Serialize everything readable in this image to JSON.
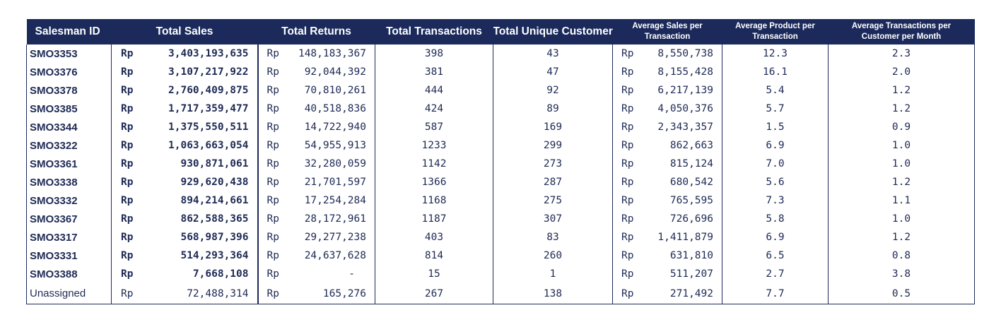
{
  "headers": {
    "salesman_id": "Salesman ID",
    "total_sales": "Total Sales",
    "total_returns": "Total Returns",
    "total_transactions": "Total Transactions",
    "total_unique_customer": "Total Unique Customer",
    "avg_sales_line1": "Average Sales per",
    "avg_sales_line2": "Transaction",
    "avg_product_line1": "Average Product per",
    "avg_product_line2": "Transaction",
    "avg_txn_line1": "Average Transactions per",
    "avg_txn_line2": "Customer per Month"
  },
  "currency": "Rp",
  "rows": [
    {
      "id": "SMO3353",
      "sales": "3,403,193,635",
      "returns": "148,183,367",
      "transactions": "398",
      "customers": "43",
      "avg_sales": "8,550,738",
      "avg_product": "12.3",
      "avg_txn": "2.3",
      "bold": true
    },
    {
      "id": "SMO3376",
      "sales": "3,107,217,922",
      "returns": "92,044,392",
      "transactions": "381",
      "customers": "47",
      "avg_sales": "8,155,428",
      "avg_product": "16.1",
      "avg_txn": "2.0",
      "bold": true
    },
    {
      "id": "SMO3378",
      "sales": "2,760,409,875",
      "returns": "70,810,261",
      "transactions": "444",
      "customers": "92",
      "avg_sales": "6,217,139",
      "avg_product": "5.4",
      "avg_txn": "1.2",
      "bold": true
    },
    {
      "id": "SMO3385",
      "sales": "1,717,359,477",
      "returns": "40,518,836",
      "transactions": "424",
      "customers": "89",
      "avg_sales": "4,050,376",
      "avg_product": "5.7",
      "avg_txn": "1.2",
      "bold": true
    },
    {
      "id": "SMO3344",
      "sales": "1,375,550,511",
      "returns": "14,722,940",
      "transactions": "587",
      "customers": "169",
      "avg_sales": "2,343,357",
      "avg_product": "1.5",
      "avg_txn": "0.9",
      "bold": true
    },
    {
      "id": "SMO3322",
      "sales": "1,063,663,054",
      "returns": "54,955,913",
      "transactions": "1233",
      "customers": "299",
      "avg_sales": "862,663",
      "avg_product": "6.9",
      "avg_txn": "1.0",
      "bold": true
    },
    {
      "id": "SMO3361",
      "sales": "930,871,061",
      "returns": "32,280,059",
      "transactions": "1142",
      "customers": "273",
      "avg_sales": "815,124",
      "avg_product": "7.0",
      "avg_txn": "1.0",
      "bold": true
    },
    {
      "id": "SMO3338",
      "sales": "929,620,438",
      "returns": "21,701,597",
      "transactions": "1366",
      "customers": "287",
      "avg_sales": "680,542",
      "avg_product": "5.6",
      "avg_txn": "1.2",
      "bold": true
    },
    {
      "id": "SMO3332",
      "sales": "894,214,661",
      "returns": "17,254,284",
      "transactions": "1168",
      "customers": "275",
      "avg_sales": "765,595",
      "avg_product": "7.3",
      "avg_txn": "1.1",
      "bold": true
    },
    {
      "id": "SMO3367",
      "sales": "862,588,365",
      "returns": "28,172,961",
      "transactions": "1187",
      "customers": "307",
      "avg_sales": "726,696",
      "avg_product": "5.8",
      "avg_txn": "1.0",
      "bold": true
    },
    {
      "id": "SMO3317",
      "sales": "568,987,396",
      "returns": "29,277,238",
      "transactions": "403",
      "customers": "83",
      "avg_sales": "1,411,879",
      "avg_product": "6.9",
      "avg_txn": "1.2",
      "bold": true
    },
    {
      "id": "SMO3331",
      "sales": "514,293,364",
      "returns": "24,637,628",
      "transactions": "814",
      "customers": "260",
      "avg_sales": "631,810",
      "avg_product": "6.5",
      "avg_txn": "0.8",
      "bold": true
    },
    {
      "id": "SMO3388",
      "sales": "7,668,108",
      "returns": "-",
      "transactions": "15",
      "customers": "1",
      "avg_sales": "511,207",
      "avg_product": "2.7",
      "avg_txn": "3.8",
      "bold": true
    },
    {
      "id": "Unassigned",
      "sales": "72,488,314",
      "returns": "165,276",
      "transactions": "267",
      "customers": "138",
      "avg_sales": "271,492",
      "avg_product": "7.7",
      "avg_txn": "0.5",
      "bold": false
    }
  ]
}
